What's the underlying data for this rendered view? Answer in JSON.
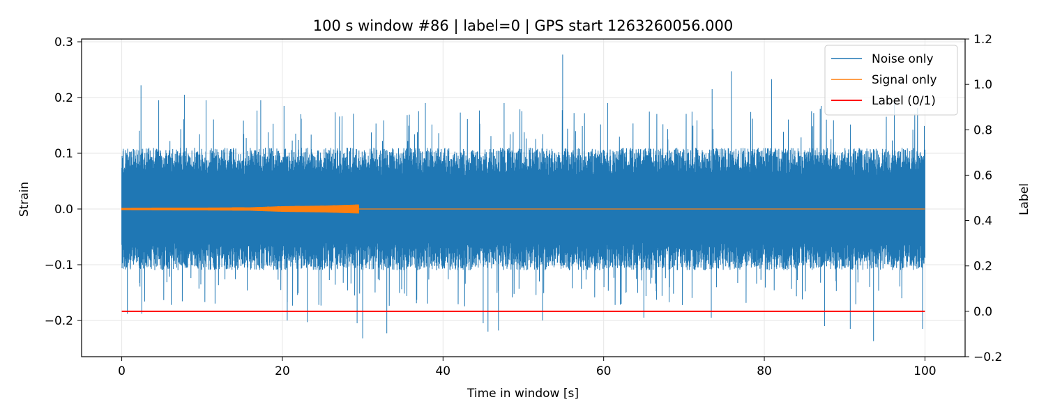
{
  "chart_data": {
    "type": "line",
    "title": "100 s window #86 | label=0 | GPS start 1263260056.000",
    "xlabel": "Time in window [s]",
    "ylabel": "Strain",
    "y2label": "Label",
    "xlim": [
      -5,
      105
    ],
    "ylim": [
      -0.265,
      0.305
    ],
    "y2lim": [
      -0.2,
      1.2
    ],
    "xticks": [
      0,
      20,
      40,
      60,
      80,
      100
    ],
    "yticks": [
      -0.2,
      -0.1,
      0.0,
      0.1,
      0.2,
      0.3
    ],
    "y2ticks": [
      -0.2,
      0.0,
      0.2,
      0.4,
      0.6,
      0.8,
      1.0,
      1.2
    ],
    "grid": true,
    "legend": {
      "placement": "top-right",
      "entries": [
        "Noise only",
        "Signal only",
        "Label (0/1)"
      ]
    },
    "series": [
      {
        "name": "Noise only",
        "color": "#1f77b4",
        "axis": "left",
        "description_values": {
          "x_range": [
            0,
            100
          ],
          "typical_band": [
            -0.11,
            0.11
          ],
          "peaks": [
            {
              "x": 2.4,
              "y": 0.222
            },
            {
              "x": 4.6,
              "y": 0.195
            },
            {
              "x": 7.8,
              "y": 0.205
            },
            {
              "x": 10.5,
              "y": 0.195
            },
            {
              "x": 17.3,
              "y": 0.195
            },
            {
              "x": 20.2,
              "y": 0.185
            },
            {
              "x": 37.8,
              "y": 0.19
            },
            {
              "x": 47.6,
              "y": 0.19
            },
            {
              "x": 54.9,
              "y": 0.277
            },
            {
              "x": 60.5,
              "y": 0.19
            },
            {
              "x": 75.9,
              "y": 0.247
            },
            {
              "x": 73.5,
              "y": 0.215
            },
            {
              "x": 80.9,
              "y": 0.233
            },
            {
              "x": 87.1,
              "y": 0.185
            },
            {
              "x": 96.2,
              "y": 0.2
            }
          ],
          "troughs": [
            {
              "x": 0.7,
              "y": -0.188
            },
            {
              "x": 2.5,
              "y": -0.188
            },
            {
              "x": 20.6,
              "y": -0.2
            },
            {
              "x": 23.1,
              "y": -0.203
            },
            {
              "x": 29.3,
              "y": -0.205
            },
            {
              "x": 30.0,
              "y": -0.232
            },
            {
              "x": 33.0,
              "y": -0.223
            },
            {
              "x": 45.0,
              "y": -0.205
            },
            {
              "x": 45.6,
              "y": -0.22
            },
            {
              "x": 46.9,
              "y": -0.218
            },
            {
              "x": 52.4,
              "y": -0.2
            },
            {
              "x": 65.0,
              "y": -0.195
            },
            {
              "x": 73.4,
              "y": -0.195
            },
            {
              "x": 87.5,
              "y": -0.21
            },
            {
              "x": 90.7,
              "y": -0.215
            },
            {
              "x": 93.6,
              "y": -0.237
            },
            {
              "x": 99.7,
              "y": -0.215
            }
          ]
        }
      },
      {
        "name": "Signal only",
        "color": "#ff7f0e",
        "axis": "left",
        "description_values": {
          "x_range": [
            0,
            100
          ],
          "active_range": [
            0,
            29.5
          ],
          "amplitude_envelope": [
            {
              "x": 0,
              "a": 0.002
            },
            {
              "x": 10,
              "a": 0.0025
            },
            {
              "x": 16,
              "a": 0.003
            },
            {
              "x": 20,
              "a": 0.005
            },
            {
              "x": 25,
              "a": 0.006
            },
            {
              "x": 29.5,
              "a": 0.008
            }
          ]
        }
      },
      {
        "name": "Label (0/1)",
        "color": "#ff0000",
        "axis": "right",
        "x": [
          0,
          100
        ],
        "values": [
          0,
          0
        ]
      }
    ]
  }
}
